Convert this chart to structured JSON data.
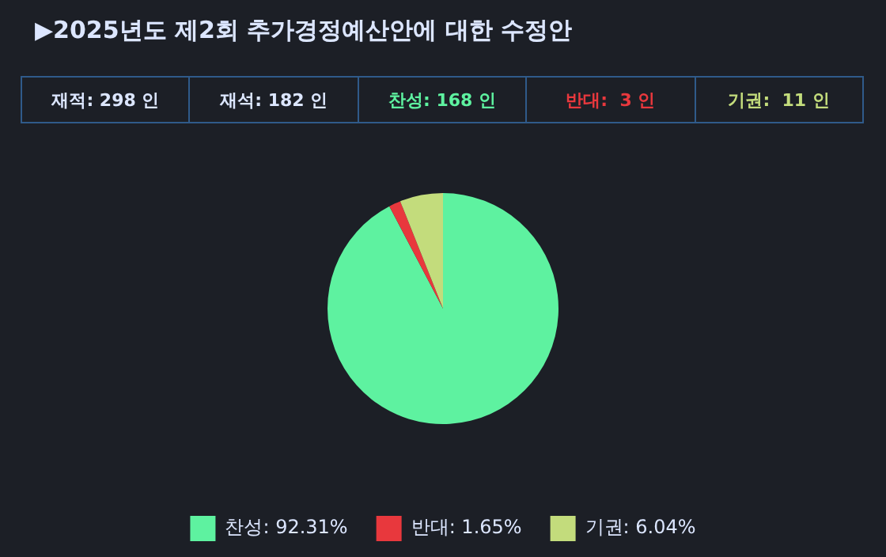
{
  "chart_data": {
    "type": "pie",
    "title": "▶2025년도 제2회 추가경정예산안에 대한 수정안",
    "annotations": [
      "재적: 298 인",
      "재석: 182 인",
      "찬성: 168 인",
      "반대:  3 인",
      "기권:  11 인"
    ],
    "categories": [
      "찬성",
      "반대",
      "기권"
    ],
    "values": [
      92.31,
      1.65,
      6.04
    ],
    "value_labels": [
      "92.31%",
      "1.65%",
      "6.04%"
    ],
    "colors": [
      "#5ef2a0",
      "#e8383d",
      "#c3dc7c"
    ],
    "legend": "bottom"
  }
}
